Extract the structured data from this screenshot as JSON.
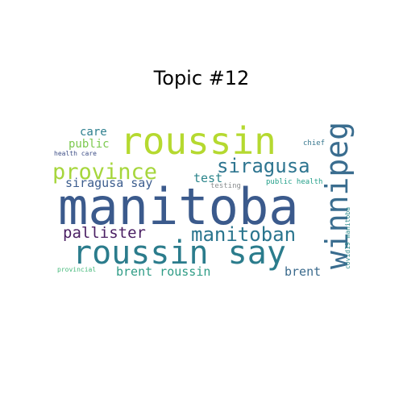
{
  "title": "Topic #12",
  "words": [
    {
      "text": "manitoba",
      "color": "#3b5a8c"
    },
    {
      "text": "roussin",
      "color": "#b5d930"
    },
    {
      "text": "roussin say",
      "color": "#2b7c8c"
    },
    {
      "text": "winnipeg",
      "color": "#3a6d8f"
    },
    {
      "text": "province",
      "color": "#a6d63c"
    },
    {
      "text": "siragusa",
      "color": "#2e7590"
    },
    {
      "text": "manitoban",
      "color": "#2a758e"
    },
    {
      "text": "pallister",
      "color": "#4a1f63"
    },
    {
      "text": "siragusa say",
      "color": "#3c5d8e"
    },
    {
      "text": "brent roussin",
      "color": "#2f9c86"
    },
    {
      "text": "brent",
      "color": "#3a6a8c"
    },
    {
      "text": "test",
      "color": "#2d868c"
    },
    {
      "text": "care",
      "color": "#2d7f8e"
    },
    {
      "text": "public",
      "color": "#7cc94e"
    },
    {
      "text": "health care",
      "color": "#3e4f87"
    },
    {
      "text": "chief",
      "color": "#38778e"
    },
    {
      "text": "public health",
      "color": "#24a08a"
    },
    {
      "text": "testing",
      "color": "#8b8e90"
    },
    {
      "text": "provincial",
      "color": "#44b97a"
    },
    {
      "text": "covid19 manitoba",
      "color": "#2d8b8c"
    }
  ]
}
